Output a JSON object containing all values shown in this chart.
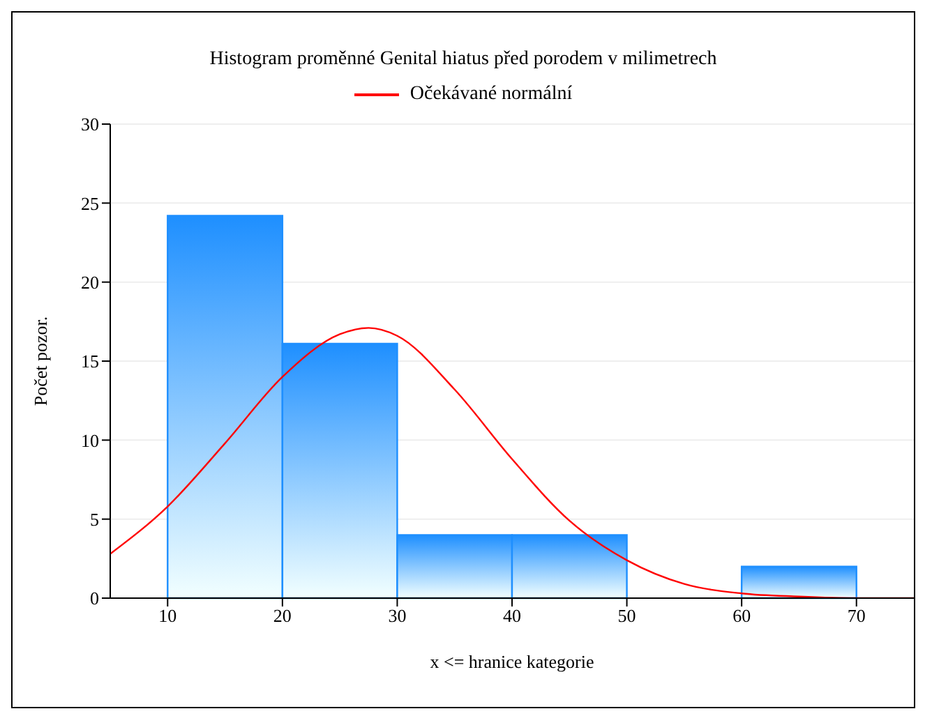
{
  "chart_data": {
    "type": "histogram",
    "title": "Histogram proměnné Genital hiatus před porodem v milimetrech",
    "xlabel": "x <= hranice kategorie",
    "ylabel": "Počet pozor.",
    "bins": [
      10,
      20,
      30,
      40,
      50,
      60,
      70
    ],
    "values": [
      24.2,
      16.1,
      4,
      4,
      0,
      2
    ],
    "color": "#1e8fff",
    "series": [
      {
        "type": "line",
        "name": "Očekávané normální",
        "color": "#ff0000",
        "x": [
          5,
          10,
          15,
          20,
          25,
          27.5,
          30,
          35,
          40,
          45,
          50,
          55,
          60,
          65,
          70,
          75
        ],
        "values": [
          2.8,
          5.8,
          9.8,
          14,
          16.7,
          17.1,
          16.6,
          13.2,
          8.8,
          4.9,
          2.4,
          0.9,
          0.3,
          0.1,
          0,
          0
        ]
      }
    ],
    "xlim": [
      5,
      75
    ],
    "ylim": [
      0,
      30
    ],
    "xticks": [
      10,
      20,
      30,
      40,
      50,
      60,
      70
    ],
    "yticks": [
      0,
      5,
      10,
      15,
      20,
      25,
      30
    ],
    "grid": "y",
    "legend": "top"
  }
}
